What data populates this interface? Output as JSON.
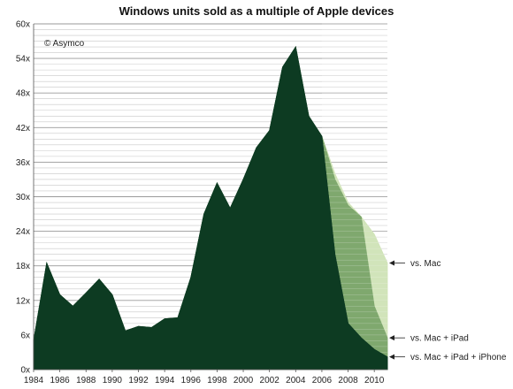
{
  "chart_data": {
    "type": "area",
    "title": "Windows units sold as a multiple of Apple devices",
    "credit": "© Asymco",
    "xlabel": "",
    "ylabel": "",
    "x_range": [
      1984,
      2011
    ],
    "ylim": [
      0,
      60
    ],
    "y_ticks": [
      "0x",
      "6x",
      "12x",
      "18x",
      "24x",
      "30x",
      "36x",
      "42x",
      "48x",
      "54x",
      "60x"
    ],
    "x_ticks": [
      "1984",
      "1986",
      "1988",
      "1990",
      "1992",
      "1994",
      "1996",
      "1998",
      "2000",
      "2002",
      "2004",
      "2006",
      "2008",
      "2010"
    ],
    "grid": true,
    "series": [
      {
        "name": "vs. Mac",
        "color": "#cfe3b6",
        "x": [
          1984,
          1985,
          1986,
          1987,
          1988,
          1989,
          1990,
          1991,
          1992,
          1993,
          1994,
          1995,
          1996,
          1997,
          1998,
          1999,
          2000,
          2001,
          2002,
          2003,
          2004,
          2005,
          2006,
          2007,
          2008,
          2009,
          2010,
          2011
        ],
        "values": [
          5,
          18.5,
          13,
          11,
          13.3,
          15.7,
          13,
          6.7,
          7.5,
          7.3,
          8.8,
          9,
          16,
          27,
          32.4,
          28,
          33,
          38.5,
          41.5,
          52.5,
          56,
          44,
          40.5,
          34,
          29,
          26.5,
          23.5,
          18.5
        ]
      },
      {
        "name": "vs. Mac + iPad",
        "color": "#7fa86e",
        "x": [
          2006,
          2007,
          2008,
          2009,
          2010,
          2011
        ],
        "values": [
          40.5,
          33,
          28.5,
          26.5,
          11,
          5.5
        ]
      },
      {
        "name": "vs. Mac + iPad + iPhone",
        "color": "#0d3b22",
        "x": [
          1984,
          1985,
          1986,
          1987,
          1988,
          1989,
          1990,
          1991,
          1992,
          1993,
          1994,
          1995,
          1996,
          1997,
          1998,
          1999,
          2000,
          2001,
          2002,
          2003,
          2004,
          2005,
          2006,
          2007,
          2008,
          2009,
          2010,
          2011
        ],
        "values": [
          5,
          18.5,
          13,
          11,
          13.3,
          15.7,
          13,
          6.7,
          7.5,
          7.3,
          8.8,
          9,
          16,
          27,
          32.4,
          28,
          33,
          38.5,
          41.5,
          52.5,
          56,
          44,
          40.5,
          20,
          8,
          5.5,
          3.5,
          2.2
        ]
      }
    ],
    "annotations": [
      "vs. Mac",
      "vs. Mac + iPad",
      "vs. Mac + iPad + iPhone"
    ]
  }
}
